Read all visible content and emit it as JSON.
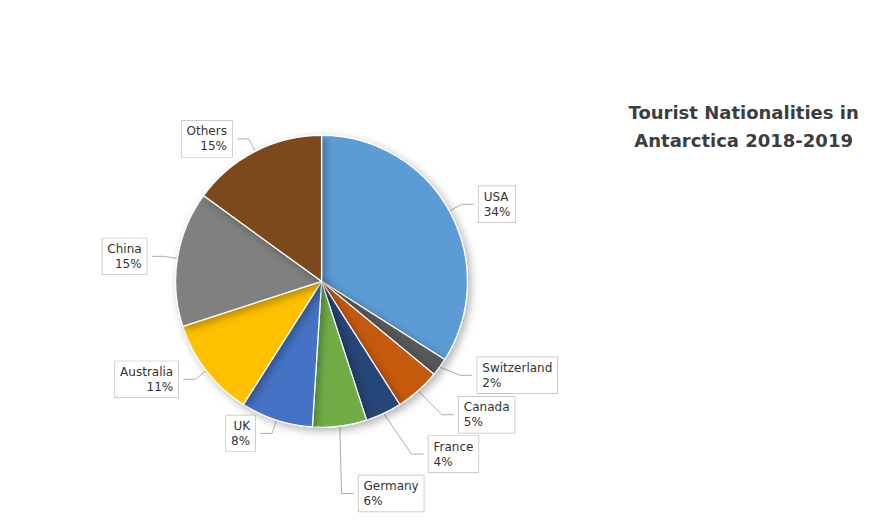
{
  "chart_data": {
    "type": "pie",
    "title": "Tourist Nationalities in\nAntarctica 2018-2019",
    "categories": [
      "USA",
      "Switzerland",
      "Canada",
      "France",
      "Germany",
      "UK",
      "Australia",
      "China",
      "Others"
    ],
    "values": [
      34,
      2,
      5,
      4,
      6,
      8,
      11,
      15,
      15
    ],
    "value_labels": [
      "34%",
      "2%",
      "5%",
      "4%",
      "6%",
      "8%",
      "11%",
      "15%",
      "15%"
    ],
    "colors": [
      "#5B9BD5",
      "#595959",
      "#C55A11",
      "#264478",
      "#70AD47",
      "#4472C4",
      "#FFC000",
      "#808080",
      "#7B4A1E"
    ],
    "data_labels": true
  }
}
